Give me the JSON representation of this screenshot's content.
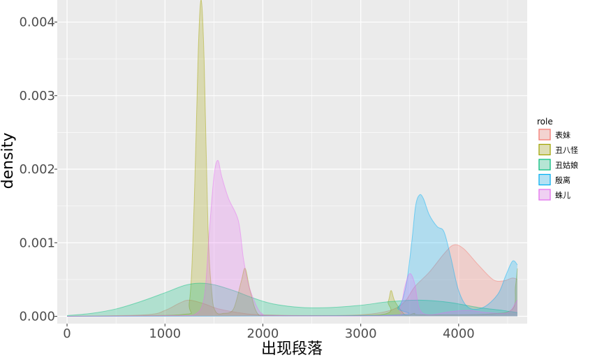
{
  "chart_data": {
    "type": "area",
    "title": "",
    "xlabel": "出现段落",
    "ylabel": "density",
    "xlim": [
      -100,
      4700
    ],
    "ylim": [
      -0.0001,
      0.0043
    ],
    "x_ticks": [
      0,
      1000,
      2000,
      3000,
      4000
    ],
    "x_tick_labels": [
      "0",
      "1000",
      "2000",
      "3000",
      "4000"
    ],
    "y_ticks": [
      0,
      0.001,
      0.002,
      0.003,
      0.004
    ],
    "y_tick_labels": [
      "0.000",
      "0.001",
      "0.002",
      "0.003",
      "0.004"
    ],
    "grid": true,
    "legend": {
      "title": "role",
      "position": "right"
    },
    "series": [
      {
        "name": "表妹",
        "color": "#F8766D",
        "x": [
          0,
          800,
          1000,
          1150,
          1250,
          1400,
          1550,
          1800,
          2000,
          2500,
          3000,
          3300,
          3450,
          3550,
          3700,
          3850,
          3950,
          4050,
          4200,
          4350,
          4450,
          4550,
          4600
        ],
        "y": [
          0,
          2e-05,
          8e-05,
          0.00018,
          0.00022,
          0.00017,
          0.0001,
          4e-05,
          2e-05,
          1e-05,
          2e-05,
          8e-05,
          0.0002,
          0.0004,
          0.0006,
          0.00085,
          0.00097,
          0.00092,
          0.0007,
          0.0005,
          0.00048,
          0.00052,
          0.0005
        ]
      },
      {
        "name": "丑八怪",
        "color": "#A3A500",
        "x": [
          0,
          1150,
          1250,
          1300,
          1340,
          1370,
          1400,
          1440,
          1480,
          1520,
          1600,
          1700,
          1780,
          1820,
          1870,
          1950,
          2100,
          3200,
          3280,
          3310,
          3350,
          3450,
          3500,
          3550,
          3620,
          4300,
          4550,
          4580,
          4600
        ],
        "y": [
          0,
          2e-05,
          0.0002,
          0.0016,
          0.0036,
          0.0043,
          0.0035,
          0.0012,
          0.0003,
          6e-05,
          4e-05,
          0.0001,
          0.00048,
          0.00065,
          0.00035,
          3e-05,
          1e-05,
          2e-05,
          0.0002,
          0.00035,
          0.0002,
          2e-05,
          2e-05,
          4e-05,
          2e-05,
          3e-05,
          0.0001,
          0.0004,
          0.00065
        ]
      },
      {
        "name": "丑姑娘",
        "color": "#00BF7D",
        "x": [
          0,
          250,
          500,
          750,
          1000,
          1200,
          1350,
          1500,
          1700,
          1900,
          2100,
          2400,
          2700,
          3000,
          3300,
          3600,
          3900,
          4200,
          4450,
          4600
        ],
        "y": [
          1e-05,
          4e-05,
          0.0001,
          0.0002,
          0.00032,
          0.00042,
          0.00045,
          0.00043,
          0.00035,
          0.00025,
          0.00017,
          0.00012,
          0.00012,
          0.00015,
          0.0002,
          0.00022,
          0.00019,
          0.00012,
          8e-05,
          5e-05
        ]
      },
      {
        "name": "殷离",
        "color": "#00B0F6",
        "x": [
          0,
          3200,
          3380,
          3460,
          3520,
          3560,
          3600,
          3640,
          3700,
          3780,
          3850,
          3920,
          4000,
          4100,
          4250,
          4400,
          4480,
          4550,
          4600
        ],
        "y": [
          0,
          1e-05,
          0.00012,
          0.0004,
          0.001,
          0.0015,
          0.00165,
          0.0016,
          0.00138,
          0.00122,
          0.00115,
          0.0008,
          0.00035,
          0.00012,
          0.00012,
          0.0003,
          0.00055,
          0.00075,
          0.0007
        ]
      },
      {
        "name": "蛛儿",
        "color": "#E76BF3",
        "x": [
          0,
          1100,
          1300,
          1400,
          1450,
          1500,
          1540,
          1580,
          1650,
          1750,
          1800,
          1850,
          1900,
          1950,
          2000,
          2100,
          3300,
          3400,
          3450,
          3500,
          3550,
          3600,
          3700,
          3900,
          4100,
          4300,
          4500,
          4580,
          4600
        ],
        "y": [
          0,
          1e-05,
          2e-05,
          0.00025,
          0.0011,
          0.0019,
          0.00212,
          0.0019,
          0.0016,
          0.0013,
          0.0008,
          0.00045,
          0.00025,
          0.0001,
          3e-05,
          1e-05,
          1e-05,
          0.0001,
          0.0004,
          0.00058,
          0.00045,
          0.0001,
          2e-05,
          6e-05,
          8e-05,
          5e-05,
          5e-05,
          0.00018,
          0.00022
        ]
      }
    ]
  }
}
